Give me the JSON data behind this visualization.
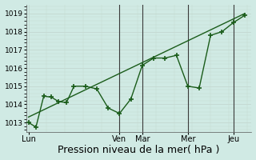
{
  "xlabel": "Pression niveau de la mer( hPa )",
  "background_color": "#d0eae4",
  "grid_major_color": "#c4d8d0",
  "grid_minor_color": "#d8ebe5",
  "line_color": "#1a5c1a",
  "ylim": [
    1012.5,
    1019.5
  ],
  "yticks": [
    1013,
    1014,
    1015,
    1016,
    1017,
    1018,
    1019
  ],
  "xtick_labels": [
    "Lun",
    "Ven",
    "Mar",
    "Mer",
    "Jeu"
  ],
  "xtick_positions": [
    0.0,
    4.0,
    5.0,
    7.0,
    9.0
  ],
  "vline_positions": [
    4.0,
    5.0,
    7.0,
    9.0
  ],
  "vline_color": "#3a3a3a",
  "data_x": [
    0.0,
    0.33,
    0.67,
    1.0,
    1.33,
    1.67,
    2.0,
    2.5,
    3.0,
    3.5,
    4.0,
    4.5,
    5.0,
    5.5,
    6.0,
    6.5,
    7.0,
    7.5,
    8.0,
    8.5,
    9.0,
    9.5
  ],
  "data_y": [
    1013.0,
    1012.75,
    1014.45,
    1014.4,
    1014.15,
    1014.1,
    1015.0,
    1015.0,
    1014.85,
    1013.8,
    1013.5,
    1014.3,
    1016.15,
    1016.55,
    1016.55,
    1016.7,
    1015.0,
    1014.9,
    1017.8,
    1018.0,
    1018.5,
    1018.9
  ],
  "trend_x": [
    0.0,
    9.5
  ],
  "trend_y": [
    1013.3,
    1019.0
  ],
  "marker": "+",
  "marker_size": 4,
  "marker_lw": 1.2,
  "line_width": 1.0,
  "fontsize_xlabel": 9,
  "fontsize_yticks": 6.5,
  "fontsize_xticks": 7,
  "xlim": [
    -0.1,
    9.8
  ]
}
